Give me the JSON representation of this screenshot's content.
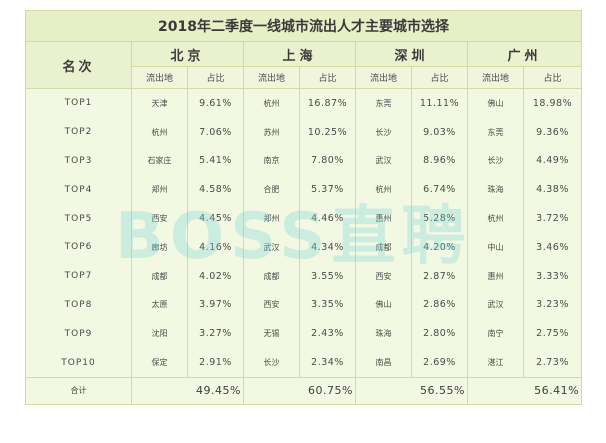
{
  "title": "2018年二季度一线城市流出人才主要城市选择",
  "rank_header": "名次",
  "sub_headers": {
    "origin": "流出地",
    "share": "占比"
  },
  "cities": [
    {
      "name": "北京",
      "total": "49.45%"
    },
    {
      "name": "上海",
      "total": "60.75%"
    },
    {
      "name": "深圳",
      "total": "56.55%"
    },
    {
      "name": "广州",
      "total": "56.41%"
    }
  ],
  "rows": [
    {
      "rank": "TOP1",
      "entries": [
        {
          "city": "天津",
          "pct": "9.61%"
        },
        {
          "city": "杭州",
          "pct": "16.87%"
        },
        {
          "city": "东莞",
          "pct": "11.11%"
        },
        {
          "city": "佛山",
          "pct": "18.98%"
        }
      ]
    },
    {
      "rank": "TOP2",
      "entries": [
        {
          "city": "杭州",
          "pct": "7.06%"
        },
        {
          "city": "苏州",
          "pct": "10.25%"
        },
        {
          "city": "长沙",
          "pct": "9.03%"
        },
        {
          "city": "东莞",
          "pct": "9.36%"
        }
      ]
    },
    {
      "rank": "TOP3",
      "entries": [
        {
          "city": "石家庄",
          "pct": "5.41%"
        },
        {
          "city": "南京",
          "pct": "7.80%"
        },
        {
          "city": "武汉",
          "pct": "8.96%"
        },
        {
          "city": "长沙",
          "pct": "4.49%"
        }
      ]
    },
    {
      "rank": "TOP4",
      "entries": [
        {
          "city": "郑州",
          "pct": "4.58%"
        },
        {
          "city": "合肥",
          "pct": "5.37%"
        },
        {
          "city": "杭州",
          "pct": "6.74%"
        },
        {
          "city": "珠海",
          "pct": "4.38%"
        }
      ]
    },
    {
      "rank": "TOP5",
      "entries": [
        {
          "city": "西安",
          "pct": "4.45%"
        },
        {
          "city": "郑州",
          "pct": "4.46%"
        },
        {
          "city": "惠州",
          "pct": "5.28%"
        },
        {
          "city": "杭州",
          "pct": "3.72%"
        }
      ]
    },
    {
      "rank": "TOP6",
      "entries": [
        {
          "city": "廊坊",
          "pct": "4.16%"
        },
        {
          "city": "武汉",
          "pct": "4.34%"
        },
        {
          "city": "成都",
          "pct": "4.20%"
        },
        {
          "city": "中山",
          "pct": "3.46%"
        }
      ]
    },
    {
      "rank": "TOP7",
      "entries": [
        {
          "city": "成都",
          "pct": "4.02%"
        },
        {
          "city": "成都",
          "pct": "3.55%"
        },
        {
          "city": "西安",
          "pct": "2.87%"
        },
        {
          "city": "惠州",
          "pct": "3.33%"
        }
      ]
    },
    {
      "rank": "TOP8",
      "entries": [
        {
          "city": "太原",
          "pct": "3.97%"
        },
        {
          "city": "西安",
          "pct": "3.35%"
        },
        {
          "city": "佛山",
          "pct": "2.86%"
        },
        {
          "city": "武汉",
          "pct": "3.23%"
        }
      ]
    },
    {
      "rank": "TOP9",
      "entries": [
        {
          "city": "沈阳",
          "pct": "3.27%"
        },
        {
          "city": "无锡",
          "pct": "2.43%"
        },
        {
          "city": "珠海",
          "pct": "2.80%"
        },
        {
          "city": "南宁",
          "pct": "2.75%"
        }
      ]
    },
    {
      "rank": "TOP10",
      "entries": [
        {
          "city": "保定",
          "pct": "2.91%"
        },
        {
          "city": "长沙",
          "pct": "2.34%"
        },
        {
          "city": "南昌",
          "pct": "2.69%"
        },
        {
          "city": "湛江",
          "pct": "2.73%"
        }
      ]
    }
  ],
  "total_label": "合计",
  "watermark": "BOSS直聘"
}
